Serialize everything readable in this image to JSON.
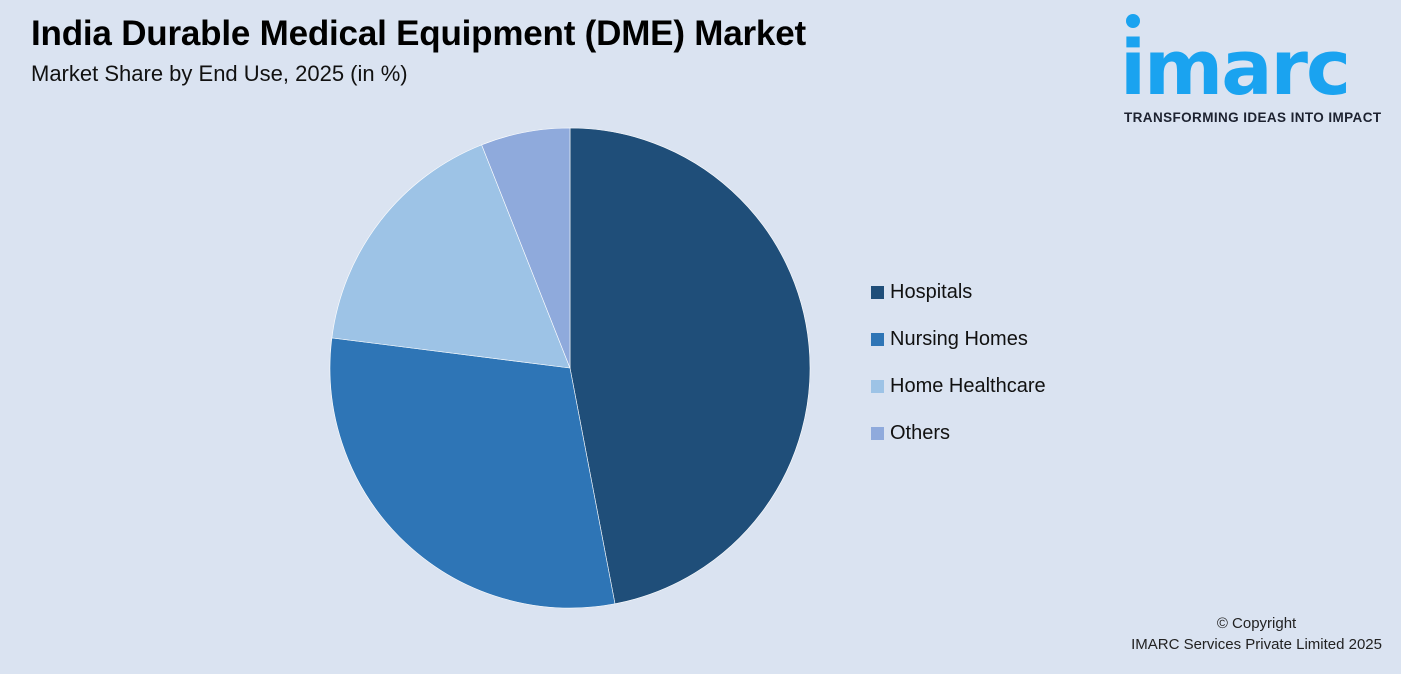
{
  "header": {
    "title": "India Durable Medical Equipment (DME) Market",
    "subtitle": "Market Share by End Use, 2025 (in %)"
  },
  "logo": {
    "wordmark": "imarc",
    "tagline": "TRANSFORMING IDEAS INTO IMPACT",
    "color": "#1aa3f0"
  },
  "legend": {
    "items": [
      {
        "label": "Hospitals",
        "color": "#1f4e79"
      },
      {
        "label": "Nursing Homes",
        "color": "#2e75b6"
      },
      {
        "label": "Home Healthcare",
        "color": "#9dc3e6"
      },
      {
        "label": "Others",
        "color": "#8faadc"
      }
    ]
  },
  "footer": {
    "copyright_line1": "© Copyright",
    "copyright_line2": "IMARC Services Private Limited 2025"
  },
  "chart_data": {
    "type": "pie",
    "title": "India Durable Medical Equipment (DME) Market",
    "subtitle": "Market Share by End Use, 2025 (in %)",
    "categories": [
      "Hospitals",
      "Nursing Homes",
      "Home Healthcare",
      "Others"
    ],
    "values": [
      47,
      30,
      17,
      6
    ],
    "colors": [
      "#1f4e79",
      "#2e75b6",
      "#9dc3e6",
      "#8faadc"
    ],
    "start_angle_deg": 0,
    "direction": "clockwise",
    "data_labels": false,
    "legend_position": "right",
    "center": [
      570,
      368
    ],
    "radius": 240
  }
}
